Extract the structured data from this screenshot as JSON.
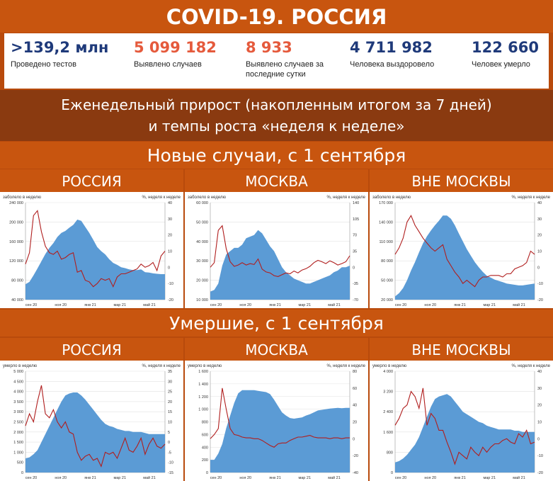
{
  "header": {
    "title": "COVID-19. РОССИЯ"
  },
  "stats": [
    {
      "value": ">139,2 млн",
      "label": "Проведено тестов",
      "color": "#1f3a7a"
    },
    {
      "value": "5 099 182",
      "label": "Выявлено случаев",
      "color": "#e55a3c"
    },
    {
      "value": "8 933",
      "label": "Выявлено случаев за последние сутки",
      "color": "#e55a3c"
    },
    {
      "value": "4 711 982",
      "label": "Человека выздоровело",
      "color": "#1f3a7a"
    },
    {
      "value": "122 660",
      "label": "Человек умерло",
      "color": "#1f3a7a"
    }
  ],
  "subtitle": {
    "line1": "Еженедельный прирост (накопленным итогом за 7 дней)",
    "line2": "и темпы роста «неделя к неделе»"
  },
  "sections": [
    {
      "title": "Новые случаи, с 1 сентября"
    },
    {
      "title": "Умершие, с 1 сентября"
    }
  ],
  "colors": {
    "area": "#5b9bd5",
    "line": "#b01e1e"
  },
  "chart_data": [
    {
      "type": "area",
      "region": "РОССИЯ",
      "lefttitle": "заболело в неделю",
      "righttitle": "%, неделя к неделе",
      "yticks": [
        "240 000",
        "200 000",
        "160 000",
        "120 000",
        "80 000",
        "40 000"
      ],
      "ylim": [
        0,
        240000
      ],
      "rticks": [
        "40",
        "30",
        "20",
        "10",
        "0",
        "-10",
        "-20"
      ],
      "rlim": [
        -20,
        40
      ],
      "xticks": [
        "сен 20",
        "ноя 20",
        "янв 21",
        "мар 21",
        "май 21"
      ],
      "weekly": [
        38000,
        44000,
        60000,
        77000,
        95000,
        113000,
        128000,
        140000,
        155000,
        165000,
        170000,
        178000,
        185000,
        198000,
        195000,
        180000,
        165000,
        148000,
        130000,
        120000,
        112000,
        100000,
        91000,
        86000,
        80000,
        78000,
        75000,
        73000,
        73000,
        75000,
        68000,
        67000,
        65000,
        64000,
        63000,
        63000
      ],
      "growth": [
        2,
        9,
        32,
        35,
        22,
        13,
        9,
        8,
        10,
        5,
        6,
        8,
        9,
        -3,
        -2,
        -8,
        -9,
        -12,
        -10,
        -7,
        -8,
        -7,
        -12,
        -6,
        -4,
        -4,
        -3,
        -2,
        -1,
        2,
        0,
        1,
        3,
        -2,
        7,
        10
      ]
    },
    {
      "type": "area",
      "region": "МОСКВА",
      "lefttitle": "заболело в неделю",
      "righttitle": "%, неделя к неделе",
      "yticks": [
        "60 000",
        "50 000",
        "40 000",
        "30 000",
        "20 000",
        "10 000"
      ],
      "ylim": [
        0,
        60000
      ],
      "rticks": [
        "140",
        "105",
        "70",
        "35",
        "0",
        "-35",
        "-70"
      ],
      "rlim": [
        -70,
        140
      ],
      "xticks": [
        "сен 20",
        "ноя 20",
        "янв 21",
        "мар 21",
        "май 21"
      ],
      "weekly": [
        5000,
        6000,
        10000,
        21000,
        28000,
        30000,
        32000,
        32000,
        34000,
        38000,
        39000,
        40000,
        43000,
        41000,
        37000,
        33000,
        30000,
        25000,
        20000,
        17000,
        15000,
        13000,
        12000,
        11000,
        10000,
        10000,
        11000,
        12000,
        13000,
        14000,
        15000,
        17000,
        18000,
        20000,
        20000,
        21000
      ],
      "growth": [
        0,
        10,
        80,
        90,
        40,
        12,
        2,
        5,
        10,
        5,
        8,
        6,
        18,
        -4,
        -10,
        -12,
        -18,
        -20,
        -16,
        -12,
        -14,
        -8,
        -12,
        -6,
        -3,
        2,
        10,
        15,
        12,
        8,
        14,
        10,
        5,
        8,
        12,
        25
      ]
    },
    {
      "type": "area",
      "region": "ВНЕ МОСКВЫ",
      "lefttitle": "заболело в неделю",
      "righttitle": "%, неделя к неделе",
      "yticks": [
        "170 000",
        "140 000",
        "110 000",
        "80 000",
        "50 000",
        "20 000"
      ],
      "ylim": [
        20000,
        170000
      ],
      "rticks": [
        "40",
        "30",
        "20",
        "10",
        "0",
        "-10",
        "-20"
      ],
      "rlim": [
        -20,
        40
      ],
      "xticks": [
        "сен 20",
        "ноя 20",
        "янв 21",
        "мар 21",
        "май 21"
      ],
      "weekly": [
        25000,
        30000,
        38000,
        50000,
        65000,
        78000,
        93000,
        107000,
        118000,
        127000,
        135000,
        142000,
        150000,
        150000,
        145000,
        135000,
        122000,
        110000,
        98000,
        88000,
        78000,
        70000,
        63000,
        57000,
        54000,
        51000,
        49000,
        47000,
        45000,
        44000,
        43000,
        42000,
        42000,
        43000,
        44000,
        45000
      ],
      "growth": [
        8,
        12,
        18,
        28,
        32,
        26,
        22,
        18,
        15,
        12,
        10,
        12,
        14,
        5,
        1,
        -3,
        -6,
        -10,
        -8,
        -10,
        -12,
        -8,
        -6,
        -6,
        -5,
        -5,
        -5,
        -6,
        -4,
        -4,
        -1,
        0,
        1,
        3,
        10,
        8
      ]
    },
    {
      "type": "area",
      "region": "РОССИЯ",
      "lefttitle": "умерло в неделю",
      "righttitle": "%, неделя к неделе",
      "yticks": [
        "5 000",
        "4 500",
        "4 000",
        "3 500",
        "3 000",
        "2 500",
        "2 000",
        "1 500",
        "1 000",
        "500",
        "0"
      ],
      "ylim": [
        0,
        5000
      ],
      "rticks": [
        "35",
        "30",
        "25",
        "20",
        "15",
        "10",
        "5",
        "0",
        "-5",
        "-10",
        "-15"
      ],
      "rlim": [
        -15,
        35
      ],
      "xticks": [
        "сен 20",
        "ноя 20",
        "янв 21",
        "мар 21",
        "май 21"
      ],
      "weekly": [
        700,
        750,
        900,
        1100,
        1500,
        1900,
        2300,
        2700,
        3100,
        3500,
        3800,
        3900,
        3950,
        3950,
        3800,
        3600,
        3350,
        3100,
        2850,
        2600,
        2400,
        2300,
        2250,
        2150,
        2100,
        2050,
        2050,
        2000,
        2000,
        2000,
        1950,
        1900,
        1900,
        1900,
        1900,
        1900
      ],
      "growth": [
        8,
        14,
        10,
        20,
        28,
        14,
        12,
        16,
        10,
        7,
        10,
        5,
        4,
        -5,
        -9,
        -7,
        -6,
        -9,
        -8,
        -12,
        -5,
        -6,
        -5,
        -8,
        -3,
        2,
        -4,
        -5,
        -2,
        2,
        -6,
        -1,
        2,
        -2,
        -3,
        -1
      ]
    },
    {
      "type": "area",
      "region": "МОСКВА",
      "lefttitle": "умерло в неделю",
      "righttitle": "%, неделя к неделе",
      "yticks": [
        "1 600",
        "1 400",
        "1 200",
        "1 000",
        "800",
        "600",
        "400",
        "200",
        "0"
      ],
      "ylim": [
        0,
        1600
      ],
      "rticks": [
        "80",
        "60",
        "40",
        "20",
        "0",
        "-20",
        "-40"
      ],
      "rlim": [
        -40,
        80
      ],
      "xticks": [
        "сен 20",
        "ноя 20",
        "янв 21",
        "мар 21",
        "май 21"
      ],
      "weekly": [
        200,
        200,
        300,
        450,
        700,
        900,
        1100,
        1250,
        1300,
        1300,
        1300,
        1300,
        1290,
        1280,
        1270,
        1240,
        1150,
        1050,
        950,
        900,
        860,
        850,
        860,
        870,
        900,
        920,
        950,
        980,
        990,
        1000,
        1010,
        1015,
        1020,
        1015,
        1020,
        1020
      ],
      "growth": [
        0,
        5,
        12,
        60,
        35,
        12,
        5,
        4,
        2,
        1,
        1,
        0,
        0,
        -2,
        -5,
        -8,
        -10,
        -6,
        -5,
        -5,
        -2,
        0,
        2,
        2,
        3,
        4,
        2,
        1,
        1,
        1,
        0,
        1,
        1,
        0,
        1,
        1
      ]
    },
    {
      "type": "area",
      "region": "ВНЕ МОСКВЫ",
      "lefttitle": "умерло в неделю",
      "righttitle": "%, неделя к неделе",
      "yticks": [
        "4 000",
        "3 200",
        "2 400",
        "1 600",
        "800",
        "0"
      ],
      "ylim": [
        0,
        4000
      ],
      "rticks": [
        "40",
        "30",
        "20",
        "10",
        "0",
        "-10",
        "-20"
      ],
      "rlim": [
        -20,
        40
      ],
      "xticks": [
        "сен 20",
        "ноя 20",
        "янв 21",
        "мар 21",
        "май 21"
      ],
      "weekly": [
        400,
        450,
        550,
        700,
        900,
        1100,
        1400,
        1800,
        2200,
        2600,
        2900,
        3000,
        3050,
        3100,
        3000,
        2800,
        2600,
        2400,
        2300,
        2200,
        2100,
        2000,
        1950,
        1850,
        1800,
        1750,
        1700,
        1700,
        1700,
        1700,
        1650,
        1650,
        1600,
        1600,
        1600,
        1600
      ],
      "growth": [
        8,
        12,
        18,
        20,
        28,
        25,
        18,
        30,
        8,
        15,
        12,
        5,
        5,
        -2,
        -8,
        -15,
        -8,
        -10,
        -12,
        -5,
        -8,
        -10,
        -5,
        -8,
        -5,
        -3,
        -3,
        -1,
        0,
        -2,
        -3,
        3,
        1,
        5,
        -3,
        -2
      ]
    }
  ]
}
